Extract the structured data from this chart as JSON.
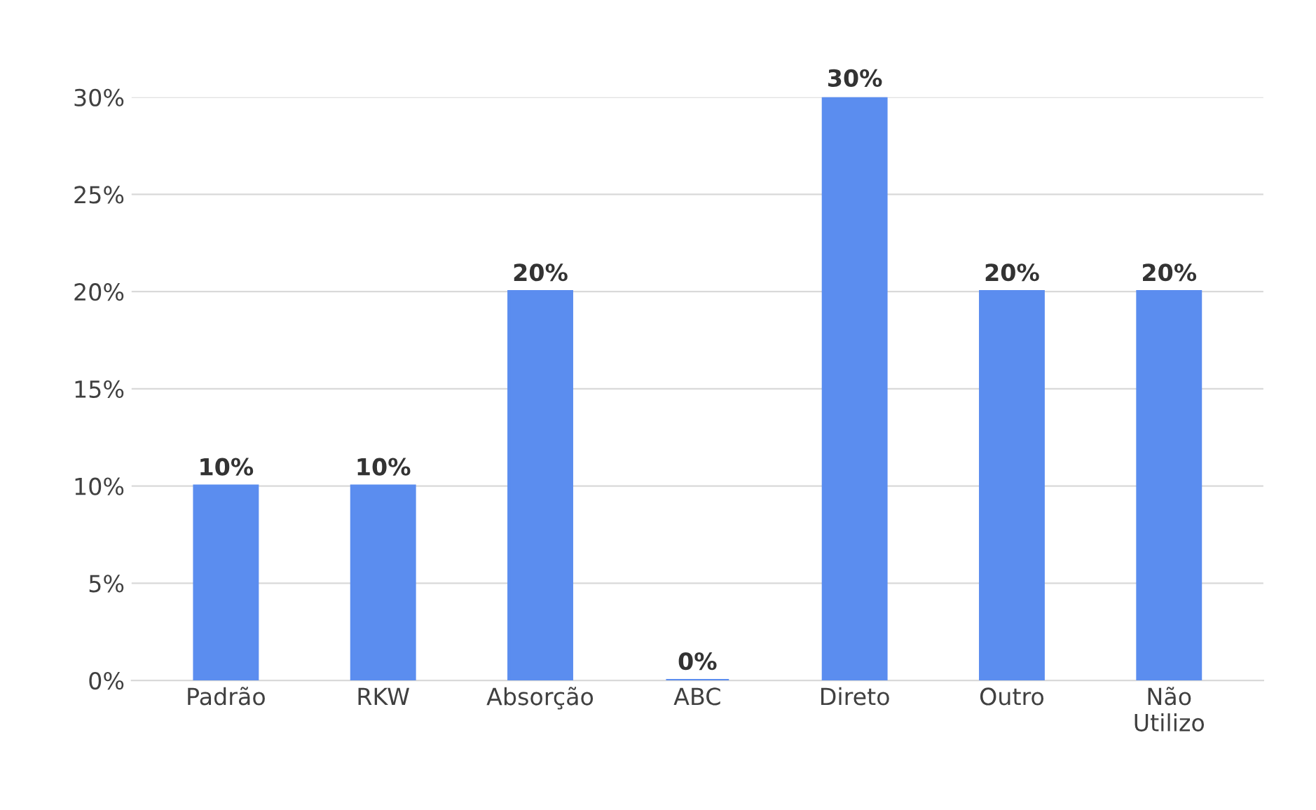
{
  "chart_data": {
    "type": "bar",
    "categories": [
      "Padrão",
      "RKW",
      "Absorção",
      "ABC",
      "Direto",
      "Outro",
      "Não\nUtilizo"
    ],
    "values": [
      10,
      10,
      20,
      0,
      30,
      20,
      20
    ],
    "value_labels": [
      "10%",
      "10%",
      "20%",
      "0%",
      "30%",
      "20%",
      "20%"
    ],
    "color": "#5b8def",
    "ylim": [
      0,
      30
    ],
    "yticks": [
      {
        "value": 0,
        "label": "0%"
      },
      {
        "value": 5,
        "label": "5%"
      },
      {
        "value": 10,
        "label": "10%"
      },
      {
        "value": 15,
        "label": "15%"
      },
      {
        "value": 20,
        "label": "20%"
      },
      {
        "value": 25,
        "label": "25%"
      },
      {
        "value": 30,
        "label": "30%"
      }
    ],
    "grid": "y",
    "legend": false
  }
}
